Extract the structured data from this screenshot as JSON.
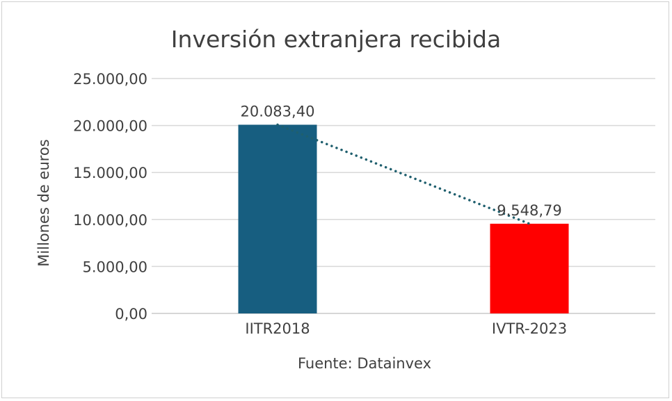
{
  "chart_data": {
    "type": "bar",
    "title": "Inversión extranjera recibida",
    "ylabel": "Millones de euros",
    "xlabel": "Fuente: Datainvex",
    "categories": [
      "IITR2018",
      "IVTR-2023"
    ],
    "values": [
      20083.4,
      9548.79
    ],
    "data_labels": [
      "20.083,40",
      "9.548,79"
    ],
    "bar_colors": [
      "#175e80",
      "#ff0000"
    ],
    "ylim": [
      0,
      25000
    ],
    "yticks": [
      0,
      5000,
      10000,
      15000,
      20000,
      25000
    ],
    "ytick_labels": [
      "0,00",
      "5.000,00",
      "10.000,00",
      "15.000,00",
      "20.000,00",
      "25.000,00"
    ],
    "grid": true,
    "trendline": {
      "style": "dotted",
      "color": "#1f5f6e"
    },
    "legend": "none"
  }
}
